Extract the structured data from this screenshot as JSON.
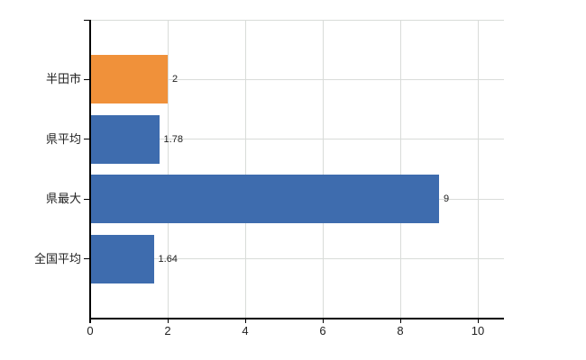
{
  "chart_data": {
    "type": "bar",
    "orientation": "horizontal",
    "categories": [
      "半田市",
      "県平均",
      "県最大",
      "全国平均"
    ],
    "values": [
      2,
      1.78,
      9,
      1.64
    ],
    "value_labels": [
      "2",
      "1.78",
      "9",
      "1.64"
    ],
    "bar_colors": [
      "#F0913A",
      "#3E6CAE",
      "#3E6CAE",
      "#3E6CAE"
    ],
    "xticks": [
      0,
      2,
      4,
      6,
      8,
      10
    ],
    "xtick_labels": [
      "0",
      "2",
      "4",
      "6",
      "8",
      "10"
    ],
    "xlim": [
      0,
      10.7
    ],
    "grid": true,
    "legend": false,
    "colors": {
      "highlight_bar": "#F0913A",
      "default_bar": "#3E6CAE",
      "gridline": "#D9DCD9",
      "axis": "#000000",
      "text": "#222222"
    }
  }
}
